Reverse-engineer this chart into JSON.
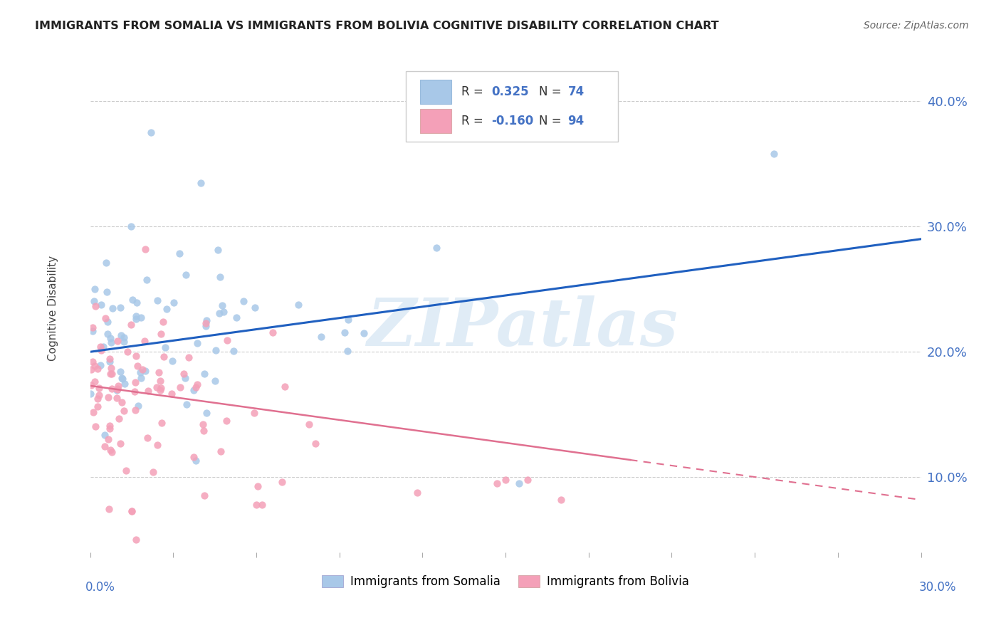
{
  "title": "IMMIGRANTS FROM SOMALIA VS IMMIGRANTS FROM BOLIVIA COGNITIVE DISABILITY CORRELATION CHART",
  "source": "Source: ZipAtlas.com",
  "ylabel": "Cognitive Disability",
  "yticks": [
    0.1,
    0.2,
    0.3,
    0.4
  ],
  "ytick_labels": [
    "10.0%",
    "20.0%",
    "30.0%",
    "40.0%"
  ],
  "xlim": [
    0.0,
    0.3
  ],
  "ylim": [
    0.04,
    0.43
  ],
  "somalia_R": 0.325,
  "somalia_N": 74,
  "bolivia_R": -0.16,
  "bolivia_N": 94,
  "somalia_color": "#a8c8e8",
  "bolivia_color": "#f4a0b8",
  "somalia_line_color": "#2060c0",
  "bolivia_line_color": "#e07090",
  "watermark": "ZIPatlas",
  "background_color": "#ffffff",
  "tick_color": "#4472c4",
  "somalia_trend_start_y": 0.2,
  "somalia_trend_end_y": 0.29,
  "bolivia_trend_start_y": 0.173,
  "bolivia_trend_end_y": 0.082
}
